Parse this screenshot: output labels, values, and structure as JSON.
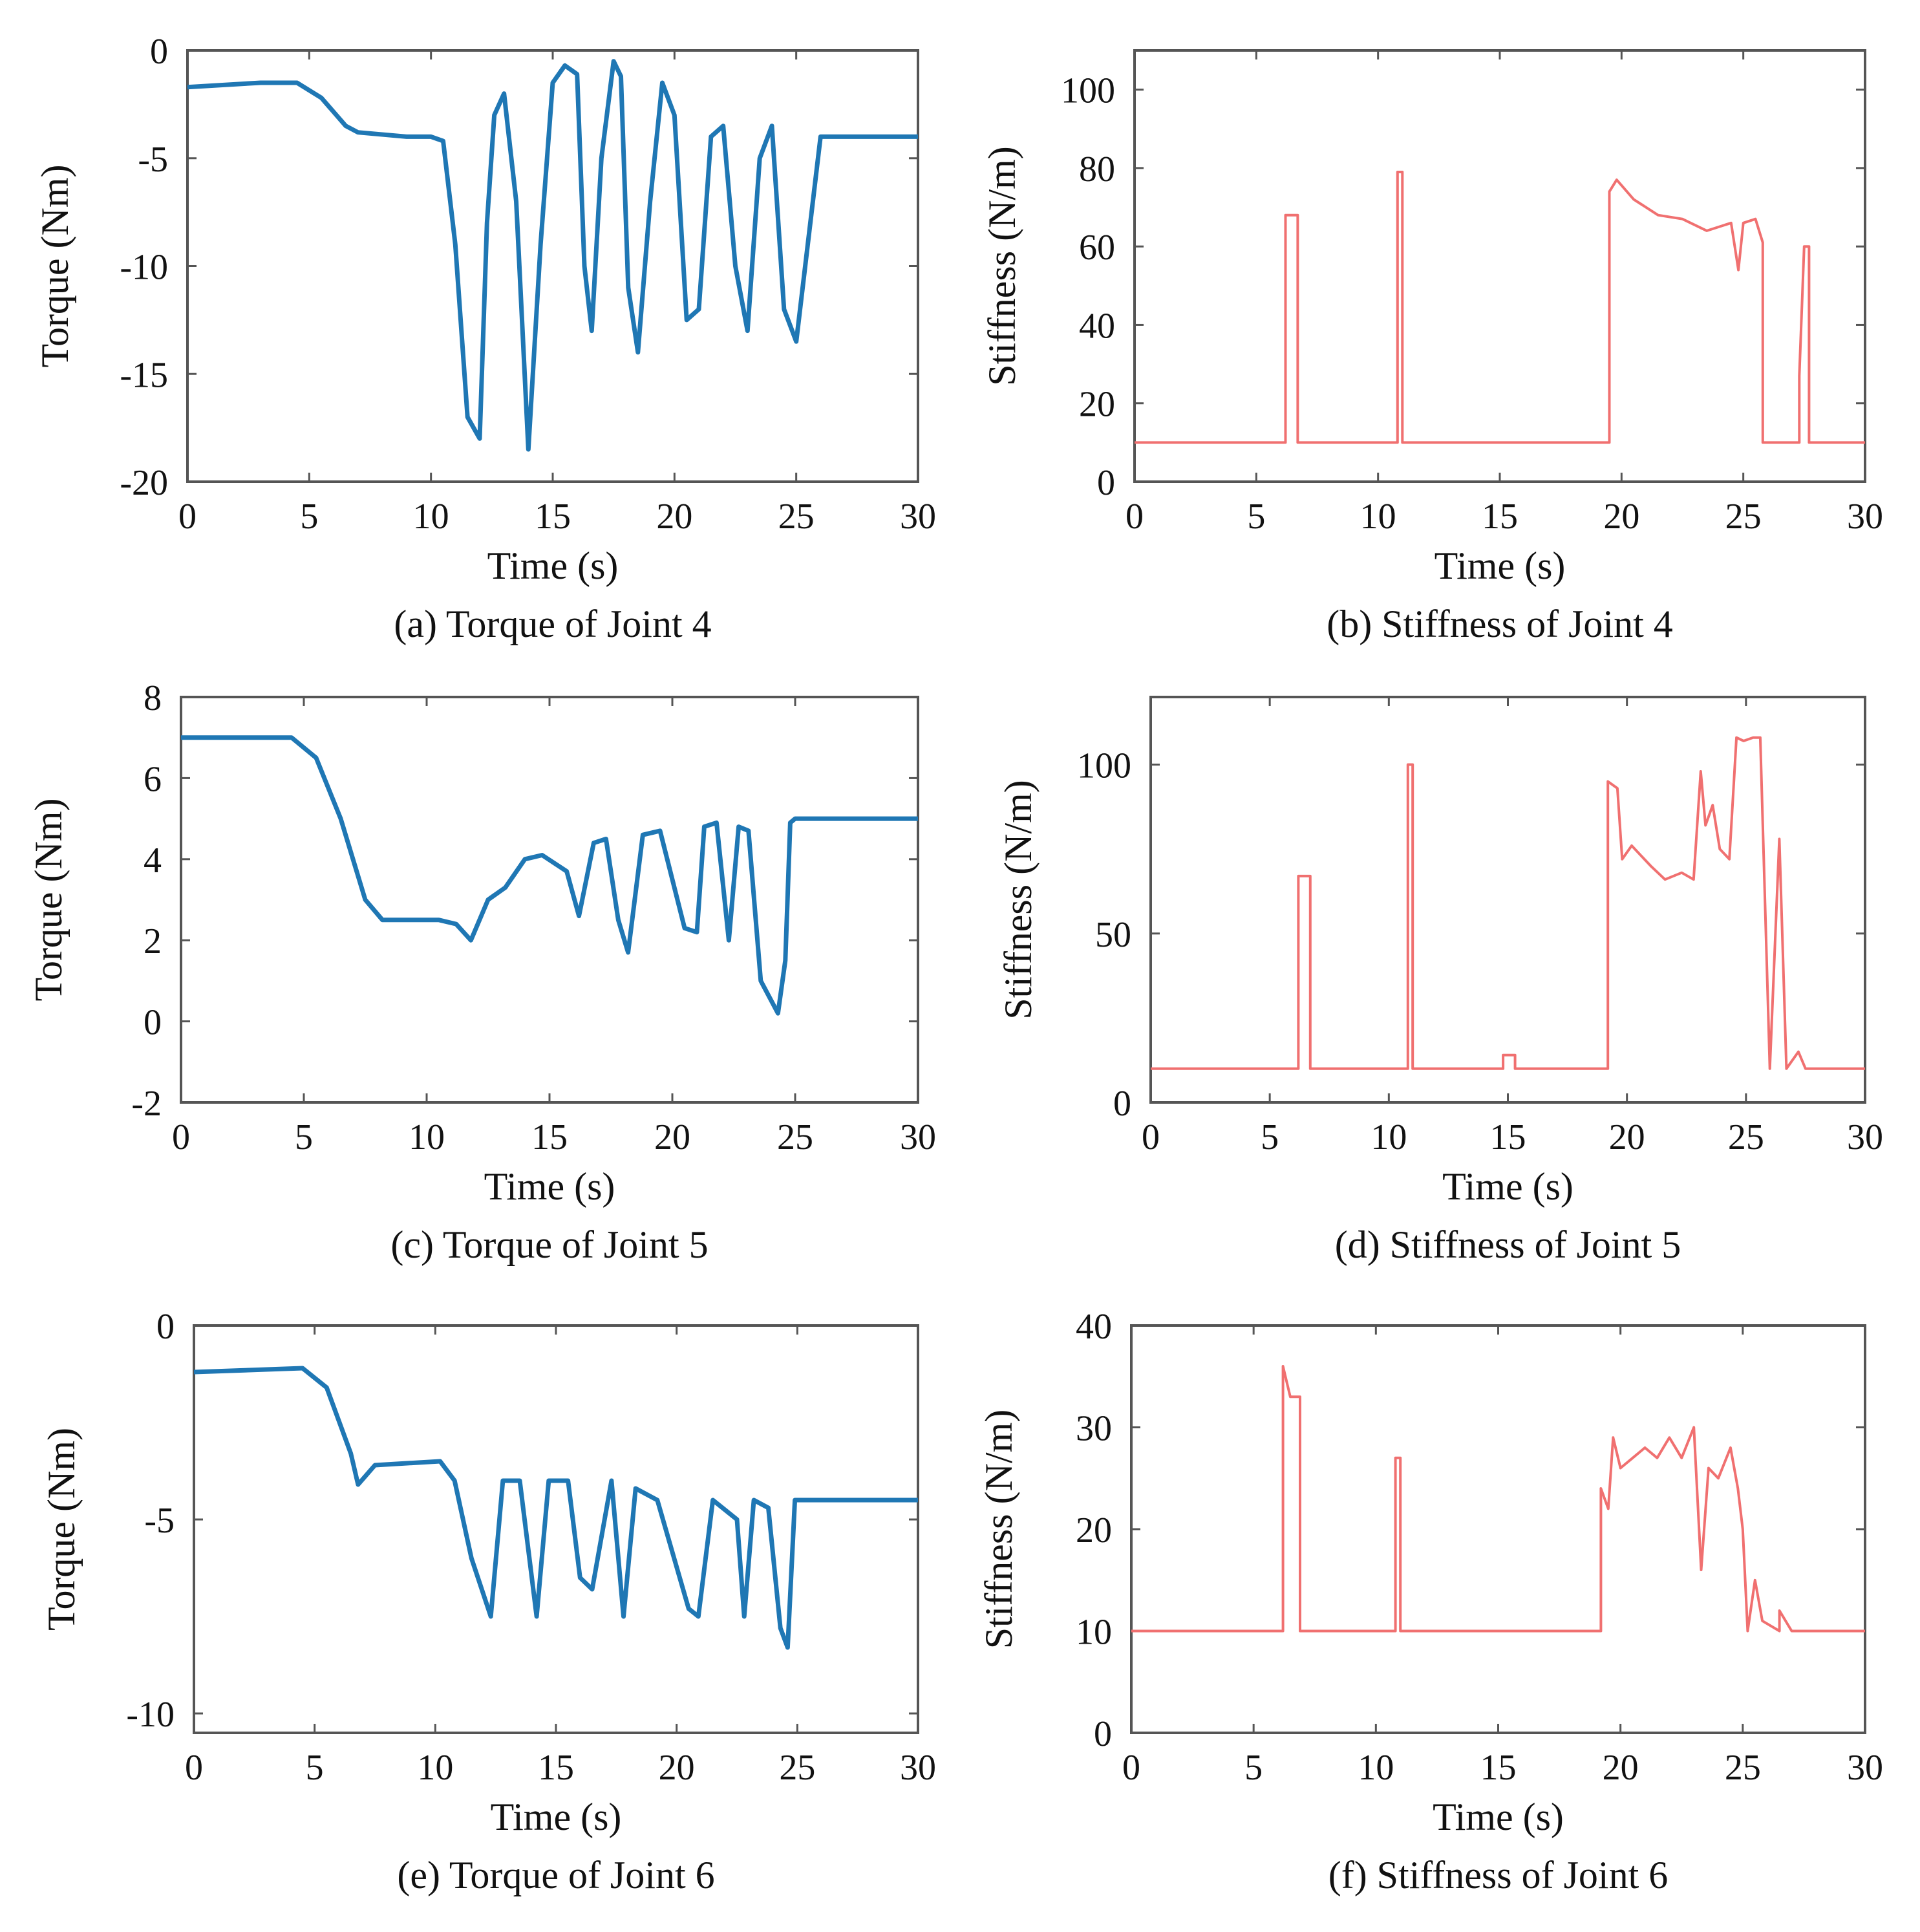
{
  "figure_title": "",
  "chart_data": [
    {
      "id": "a",
      "type": "line",
      "caption": "(a) Torque of Joint 4",
      "title": "Torque of Joint 4",
      "xlabel": "Time (s)",
      "ylabel": "Torque (Nm)",
      "xlim": [
        0,
        30
      ],
      "ylim": [
        -20,
        0
      ],
      "xticks": [
        0,
        5,
        10,
        15,
        20,
        25,
        30
      ],
      "yticks": [
        0,
        -5,
        -10,
        -15,
        -20
      ],
      "color": "#1f77b4",
      "series": [
        {
          "name": "Torque",
          "x": [
            0,
            3,
            4.5,
            5.5,
            6.5,
            7,
            9,
            10,
            10.5,
            11,
            11.5,
            12,
            12.3,
            12.6,
            13,
            13.5,
            14,
            14.5,
            15,
            15.5,
            16,
            16.3,
            16.6,
            17,
            17.5,
            17.8,
            18.1,
            18.5,
            19,
            19.5,
            20,
            20.5,
            21,
            21.5,
            22,
            22.5,
            23,
            23.5,
            24,
            24.5,
            25,
            26,
            28,
            30
          ],
          "y": [
            -1.7,
            -1.5,
            -1.5,
            -2.2,
            -3.5,
            -3.8,
            -4,
            -4,
            -4.2,
            -9,
            -17,
            -18,
            -8,
            -3,
            -2,
            -7,
            -18.5,
            -9,
            -1.5,
            -0.7,
            -1.1,
            -10,
            -13,
            -5,
            -0.5,
            -1.2,
            -11,
            -14,
            -7,
            -1.5,
            -3,
            -12.5,
            -12,
            -4,
            -3.5,
            -10,
            -13,
            -5,
            -3.5,
            -12,
            -13.5,
            -4,
            -4,
            -4
          ]
        }
      ]
    },
    {
      "id": "b",
      "type": "line",
      "caption": "(b) Stiffness of Joint 4",
      "title": "Stiffness of Joint 4",
      "xlabel": "Time (s)",
      "ylabel": "Stiffness (N/m)",
      "xlim": [
        0,
        30
      ],
      "ylim": [
        0,
        110
      ],
      "xticks": [
        0,
        5,
        10,
        15,
        20,
        25,
        30
      ],
      "yticks": [
        0,
        20,
        40,
        60,
        80,
        100
      ],
      "color": "#f07070",
      "series": [
        {
          "name": "Stiffness",
          "x": [
            0,
            6.2,
            6.2,
            6.7,
            6.7,
            10.8,
            10.8,
            11,
            11,
            19.5,
            19.5,
            19.8,
            20.5,
            21.5,
            22.5,
            23.5,
            24.5,
            24.8,
            25,
            25.5,
            25.8,
            25.8,
            27.3,
            27.3,
            27.5,
            27.7,
            27.7,
            30
          ],
          "y": [
            10,
            10,
            68,
            68,
            10,
            10,
            79,
            79,
            10,
            10,
            74,
            77,
            72,
            68,
            67,
            64,
            66,
            54,
            66,
            67,
            61,
            10,
            10,
            27,
            60,
            60,
            10,
            10
          ]
        }
      ]
    },
    {
      "id": "c",
      "type": "line",
      "caption": "(c) Torque of Joint 5",
      "title": "Torque of Joint 5",
      "xlabel": "Time (s)",
      "ylabel": "Torque (Nm)",
      "xlim": [
        0,
        30
      ],
      "ylim": [
        -2,
        8
      ],
      "xticks": [
        0,
        5,
        10,
        15,
        20,
        25,
        30
      ],
      "yticks": [
        8,
        6,
        4,
        2,
        0,
        -2
      ],
      "color": "#1f77b4",
      "series": [
        {
          "name": "Torque",
          "x": [
            0,
            4.5,
            5.5,
            6.5,
            7,
            7.5,
            8.2,
            10.5,
            11.2,
            11.8,
            12.5,
            13.2,
            14,
            14.7,
            15.7,
            16.2,
            16.8,
            17.3,
            17.8,
            18.2,
            18.8,
            19.5,
            20.5,
            21,
            21.3,
            21.8,
            22.3,
            22.7,
            23.1,
            23.6,
            24.3,
            24.6,
            24.8,
            25,
            30
          ],
          "y": [
            7,
            7,
            6.5,
            5,
            4,
            3,
            2.5,
            2.5,
            2.4,
            2,
            3,
            3.3,
            4,
            4.1,
            3.7,
            2.6,
            4.4,
            4.5,
            2.5,
            1.7,
            4.6,
            4.7,
            2.3,
            2.2,
            4.8,
            4.9,
            2,
            4.8,
            4.7,
            1,
            0.2,
            1.5,
            4.9,
            5,
            5
          ]
        }
      ]
    },
    {
      "id": "d",
      "type": "line",
      "caption": "(d) Stiffness of Joint 5",
      "title": "Stiffness of Joint 5",
      "xlabel": "Time (s)",
      "ylabel": "Stiffness (N/m)",
      "xlim": [
        0,
        30
      ],
      "ylim": [
        0,
        120
      ],
      "xticks": [
        0,
        5,
        10,
        15,
        20,
        25,
        30
      ],
      "yticks": [
        0,
        50,
        100
      ],
      "color": "#f07070",
      "series": [
        {
          "name": "Stiffness",
          "x": [
            0,
            6.2,
            6.2,
            6.7,
            6.7,
            10.8,
            10.8,
            11,
            11,
            14.8,
            14.8,
            15.3,
            15.3,
            19.2,
            19.2,
            19.6,
            19.8,
            20.2,
            21,
            21.6,
            22.3,
            22.8,
            23.1,
            23.3,
            23.6,
            23.9,
            24.3,
            24.6,
            24.9,
            25.3,
            25.6,
            26,
            26,
            26.4,
            26.4,
            26.7,
            26.7,
            27.2,
            27.5,
            30
          ],
          "y": [
            10,
            10,
            67,
            67,
            10,
            10,
            100,
            100,
            10,
            10,
            14,
            14,
            10,
            10,
            95,
            93,
            72,
            76,
            70,
            66,
            68,
            66,
            98,
            82,
            88,
            75,
            72,
            108,
            107,
            108,
            108,
            10,
            10,
            78,
            78,
            10,
            10,
            15,
            10,
            10
          ]
        }
      ]
    },
    {
      "id": "e",
      "type": "line",
      "caption": "(e) Torque of Joint 6",
      "title": "Torque of Joint 6",
      "xlabel": "Time (s)",
      "ylabel": "Torque (Nm)",
      "xlim": [
        0,
        30
      ],
      "ylim": [
        -10.5,
        0
      ],
      "xticks": [
        0,
        5,
        10,
        15,
        20,
        25,
        30
      ],
      "yticks": [
        0,
        -5,
        -10
      ],
      "color": "#1f77b4",
      "series": [
        {
          "name": "Torque",
          "x": [
            0,
            4.5,
            5.5,
            6.5,
            6.8,
            7.5,
            10.2,
            10.8,
            11.5,
            12.3,
            12.8,
            13.5,
            14.2,
            14.7,
            15.5,
            16,
            16.5,
            17.3,
            17.8,
            18.3,
            19.2,
            20.5,
            20.9,
            21.5,
            22.5,
            22.8,
            23.2,
            23.8,
            24.3,
            24.6,
            24.9,
            25.2,
            30
          ],
          "y": [
            -1.2,
            -1.1,
            -1.6,
            -3.3,
            -4.1,
            -3.6,
            -3.5,
            -4,
            -6,
            -7.5,
            -4,
            -4,
            -7.5,
            -4,
            -4,
            -6.5,
            -6.8,
            -4,
            -7.5,
            -4.2,
            -4.5,
            -7.3,
            -7.5,
            -4.5,
            -5,
            -7.5,
            -4.5,
            -4.7,
            -7.8,
            -8.3,
            -4.5,
            -4.5,
            -4.5
          ]
        }
      ]
    },
    {
      "id": "f",
      "type": "line",
      "caption": "(f) Stiffness of Joint 6",
      "title": "Stiffness of Joint 6",
      "xlabel": "Time (s)",
      "ylabel": "Stiffness (N/m)",
      "xlim": [
        0,
        30
      ],
      "ylim": [
        0,
        40
      ],
      "xticks": [
        0,
        5,
        10,
        15,
        20,
        25,
        30
      ],
      "yticks": [
        0,
        10,
        20,
        30,
        40
      ],
      "color": "#f07070",
      "series": [
        {
          "name": "Stiffness",
          "x": [
            0,
            6.2,
            6.2,
            6.5,
            6.6,
            6.9,
            6.9,
            10.8,
            10.8,
            11,
            11,
            19.2,
            19.2,
            19.5,
            19.7,
            20,
            20.5,
            21,
            21.5,
            22,
            22.5,
            23,
            23.3,
            23.6,
            24,
            24.5,
            24.8,
            25,
            25.2,
            25.5,
            25.8,
            26.5,
            26.5,
            27,
            27,
            28,
            30
          ],
          "y": [
            10,
            10,
            36,
            33,
            33,
            33,
            10,
            10,
            27,
            27,
            10,
            10,
            24,
            22,
            29,
            26,
            27,
            28,
            27,
            29,
            27,
            30,
            16,
            26,
            25,
            28,
            24,
            20,
            10,
            15,
            11,
            10,
            12,
            10,
            10,
            10,
            10
          ]
        }
      ]
    }
  ]
}
